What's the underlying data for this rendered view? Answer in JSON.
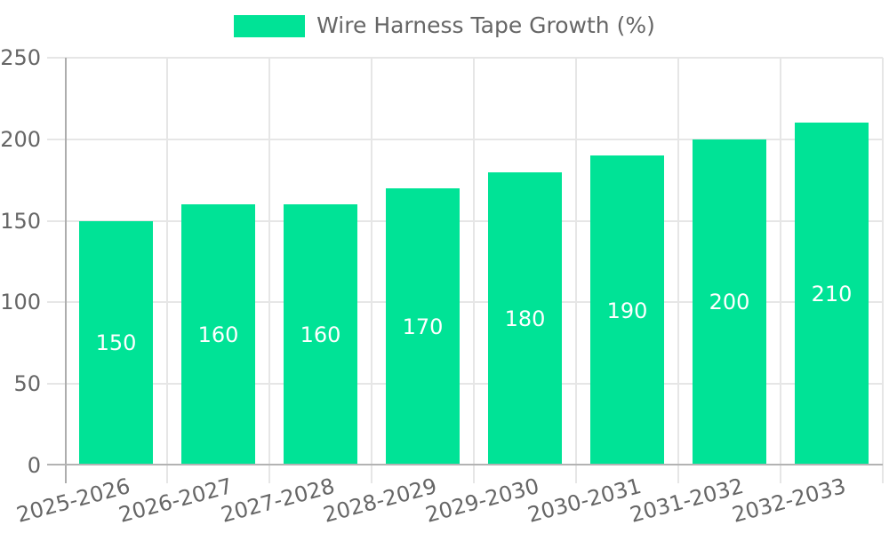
{
  "chart_data": {
    "type": "bar",
    "title": "Wire Harness Tape Growth (%)",
    "legend": {
      "position": "top",
      "entries": [
        "Wire Harness Tape Growth (%)"
      ]
    },
    "categories": [
      "2025-2026",
      "2026-2027",
      "2027-2028",
      "2028-2029",
      "2029-2030",
      "2030-2031",
      "2031-2032",
      "2032-2033"
    ],
    "values": [
      150,
      160,
      160,
      170,
      180,
      190,
      200,
      210
    ],
    "data_labels": [
      "150",
      "160",
      "160",
      "170",
      "180",
      "190",
      "200",
      "210"
    ],
    "xlabel": "",
    "ylabel": "",
    "ylim": [
      0,
      250
    ],
    "yticks": [
      0,
      50,
      100,
      150,
      200,
      250
    ],
    "grid": "on",
    "colors": {
      "bar": "#00E396",
      "data_label": "#ffffff",
      "grid_line": "#e6e6e6",
      "axis_line": "#b3b3b3",
      "tick_text": "#666666",
      "background": "#ffffff"
    }
  }
}
